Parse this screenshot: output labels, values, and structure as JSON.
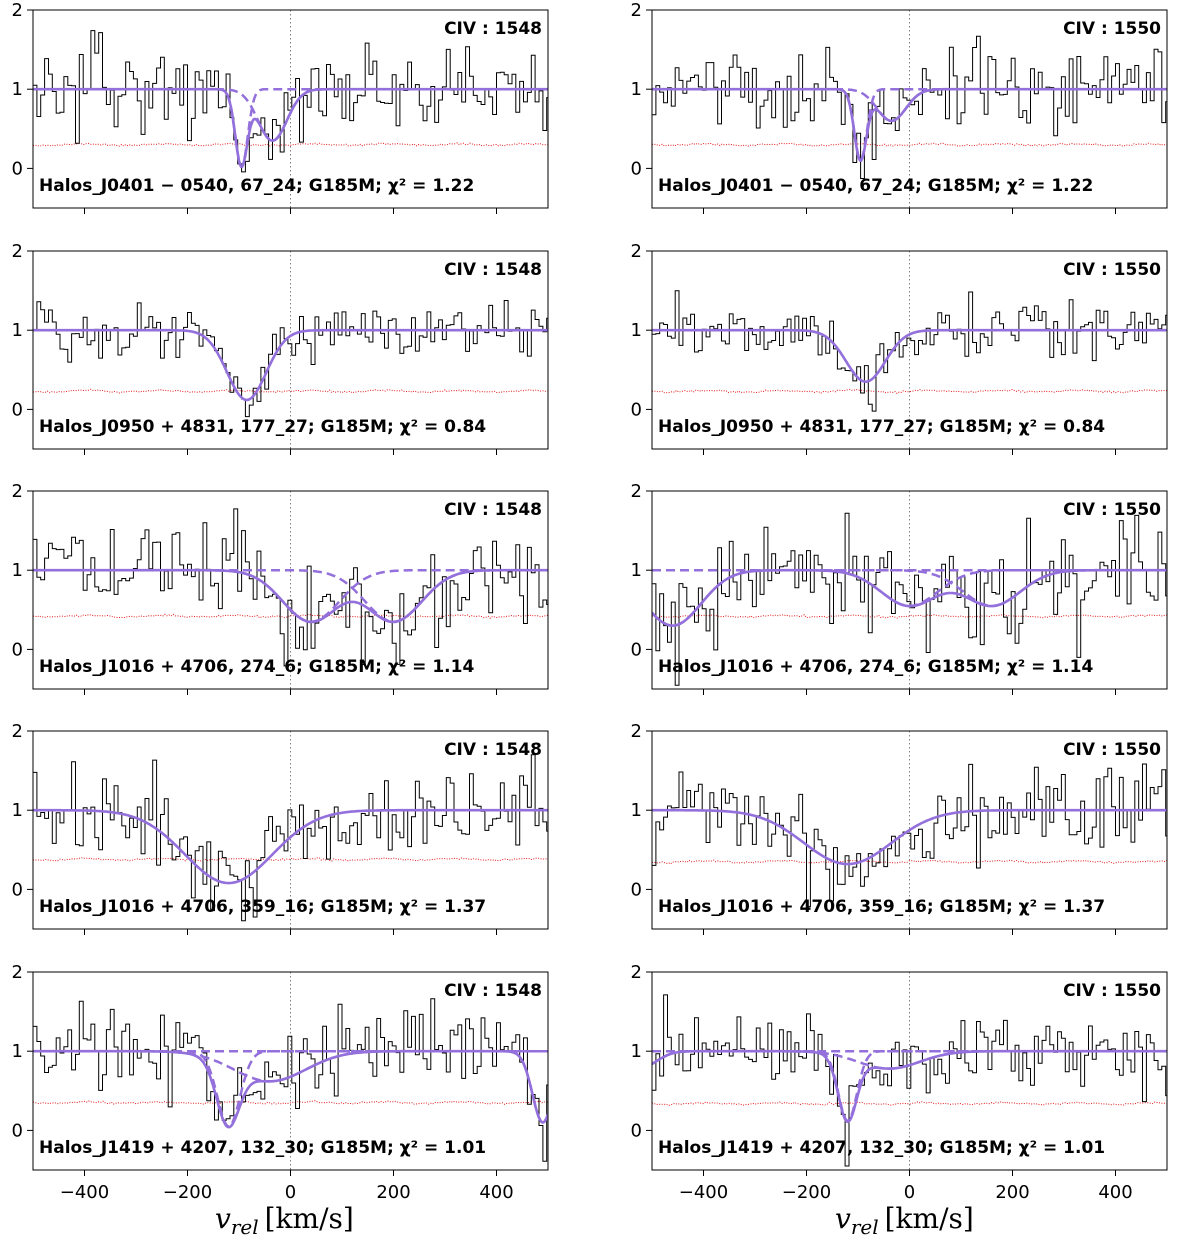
{
  "figure": {
    "xlabel": "v_rel [km/s]",
    "xlabel_main": "v",
    "xlabel_sub": "rel",
    "xlabel_unit": "[km/s]"
  },
  "colors": {
    "data": "#000000",
    "model": "#9370DB",
    "error": "#e41a1c",
    "zero_line": "#808080"
  },
  "chart_data": [
    {
      "type": "line",
      "ion": "CIV : 1548",
      "label": "Halos_J0401 − 0540, 67_24; G185M; χ² = 1.22",
      "xlim": [
        -500,
        500
      ],
      "ylim": [
        -0.5,
        2
      ],
      "xticks": [
        -400,
        -200,
        0,
        200,
        400
      ],
      "yticks": [
        0,
        1,
        2
      ],
      "noise_sigma": 0.3,
      "error_level": 0.3,
      "seed": 11,
      "components": [
        {
          "center": -95,
          "depth": 0.98,
          "width": 12
        },
        {
          "center": -35,
          "depth": 0.65,
          "width": 28
        }
      ]
    },
    {
      "type": "line",
      "ion": "CIV : 1550",
      "label": "Halos_J0401 − 0540, 67_24; G185M; χ² = 1.22",
      "xlim": [
        -500,
        500
      ],
      "ylim": [
        -0.5,
        2
      ],
      "xticks": [
        -400,
        -200,
        0,
        200,
        400
      ],
      "yticks": [
        0,
        1,
        2
      ],
      "noise_sigma": 0.3,
      "error_level": 0.3,
      "seed": 12,
      "components": [
        {
          "center": -95,
          "depth": 0.9,
          "width": 12
        },
        {
          "center": -35,
          "depth": 0.4,
          "width": 28
        }
      ]
    },
    {
      "type": "line",
      "ion": "CIV : 1548",
      "label": "Halos_J0950 + 4831, 177_27; G185M; χ² = 0.84",
      "xlim": [
        -500,
        500
      ],
      "ylim": [
        -0.5,
        2
      ],
      "xticks": [
        -400,
        -200,
        0,
        200,
        400
      ],
      "yticks": [
        0,
        1,
        2
      ],
      "noise_sigma": 0.22,
      "error_level": 0.23,
      "seed": 21,
      "components": [
        {
          "center": -85,
          "depth": 0.88,
          "width": 38
        }
      ]
    },
    {
      "type": "line",
      "ion": "CIV : 1550",
      "label": "Halos_J0950 + 4831, 177_27; G185M; χ² = 0.84",
      "xlim": [
        -500,
        500
      ],
      "ylim": [
        -0.5,
        2
      ],
      "xticks": [
        -400,
        -200,
        0,
        200,
        400
      ],
      "yticks": [
        0,
        1,
        2
      ],
      "noise_sigma": 0.22,
      "error_level": 0.23,
      "seed": 22,
      "components": [
        {
          "center": -85,
          "depth": 0.65,
          "width": 38
        }
      ]
    },
    {
      "type": "line",
      "ion": "CIV : 1548",
      "label": "Halos_J1016 + 4706, 274_6; G185M; χ² = 1.14",
      "xlim": [
        -500,
        500
      ],
      "ylim": [
        -0.5,
        2
      ],
      "xticks": [
        -400,
        -200,
        0,
        200,
        400
      ],
      "yticks": [
        0,
        1,
        2
      ],
      "noise_sigma": 0.4,
      "error_level": 0.42,
      "seed": 31,
      "components": [
        {
          "center": 40,
          "depth": 0.65,
          "width": 55
        },
        {
          "center": 200,
          "depth": 0.65,
          "width": 55
        }
      ]
    },
    {
      "type": "line",
      "ion": "CIV : 1550",
      "label": "Halos_J1016 + 4706, 274_6; G185M; χ² = 1.14",
      "xlim": [
        -500,
        500
      ],
      "ylim": [
        -0.5,
        2
      ],
      "xticks": [
        -400,
        -200,
        0,
        200,
        400
      ],
      "yticks": [
        0,
        1,
        2
      ],
      "noise_sigma": 0.4,
      "error_level": 0.42,
      "seed": 32,
      "components": [
        {
          "center": -460,
          "depth": 0.7,
          "width": 55
        },
        {
          "center": 0,
          "depth": 0.45,
          "width": 55
        },
        {
          "center": 160,
          "depth": 0.45,
          "width": 55
        }
      ]
    },
    {
      "type": "line",
      "ion": "CIV : 1548",
      "label": "Halos_J1016 + 4706, 359_16; G185M; χ² = 1.37",
      "xlim": [
        -500,
        500
      ],
      "ylim": [
        -0.5,
        2
      ],
      "xticks": [
        -400,
        -200,
        0,
        200,
        400
      ],
      "yticks": [
        0,
        1,
        2
      ],
      "noise_sigma": 0.35,
      "error_level": 0.38,
      "seed": 41,
      "components": [
        {
          "center": -120,
          "depth": 0.92,
          "width": 85
        }
      ]
    },
    {
      "type": "line",
      "ion": "CIV : 1550",
      "label": "Halos_J1016 + 4706, 359_16; G185M; χ² = 1.37",
      "xlim": [
        -500,
        500
      ],
      "ylim": [
        -0.5,
        2
      ],
      "xticks": [
        -400,
        -200,
        0,
        200,
        400
      ],
      "yticks": [
        0,
        1,
        2
      ],
      "noise_sigma": 0.35,
      "error_level": 0.35,
      "seed": 42,
      "components": [
        {
          "center": -120,
          "depth": 0.68,
          "width": 85
        }
      ]
    },
    {
      "type": "line",
      "ion": "CIV : 1548",
      "label": "Halos_J1419 + 4207, 132_30; G185M; χ² = 1.01",
      "xlim": [
        -500,
        500
      ],
      "ylim": [
        -0.5,
        2
      ],
      "xticks": [
        -400,
        -200,
        0,
        200,
        400
      ],
      "yticks": [
        0,
        1,
        2
      ],
      "noise_sigma": 0.3,
      "error_level": 0.35,
      "seed": 51,
      "components": [
        {
          "center": -120,
          "depth": 0.95,
          "width": 22
        },
        {
          "center": -40,
          "depth": 0.38,
          "width": 70
        },
        {
          "center": 490,
          "depth": 0.9,
          "width": 20
        }
      ]
    },
    {
      "type": "line",
      "ion": "CIV : 1550",
      "label": "Halos_J1419 + 4207, 132_30; G185M; χ² = 1.01",
      "xlim": [
        -500,
        500
      ],
      "ylim": [
        -0.5,
        2
      ],
      "xticks": [
        -400,
        -200,
        0,
        200,
        400
      ],
      "yticks": [
        0,
        1,
        2
      ],
      "noise_sigma": 0.3,
      "error_level": 0.34,
      "seed": 52,
      "components": [
        {
          "center": -120,
          "depth": 0.88,
          "width": 18
        },
        {
          "center": -40,
          "depth": 0.22,
          "width": 60
        },
        {
          "center": -520,
          "depth": 0.2,
          "width": 30
        }
      ]
    }
  ]
}
